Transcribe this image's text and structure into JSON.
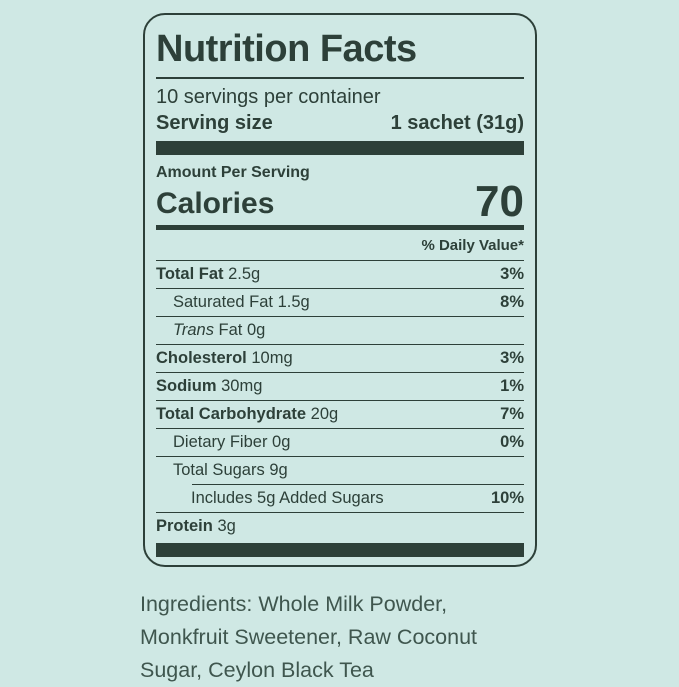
{
  "colors": {
    "background": "#cfe8e4",
    "ink": "#2d4039",
    "ingredients_text": "#3f564e"
  },
  "label": {
    "title": "Nutrition Facts",
    "servings_per_container": "10 servings per container",
    "serving_size": {
      "label": "Serving size",
      "value": "1 sachet (31g)"
    },
    "amount_per_serving": "Amount Per Serving",
    "calories": {
      "label": "Calories",
      "value": "70"
    },
    "daily_value_header": "% Daily Value*",
    "rows": [
      {
        "name": "Total Fat",
        "amount": "2.5g",
        "daily_value": "3%"
      },
      {
        "name": "Saturated Fat",
        "amount": "1.5g",
        "daily_value": "8%"
      },
      {
        "name_italic": "Trans",
        "name": "Fat",
        "amount": "0g",
        "daily_value": ""
      },
      {
        "name": "Cholesterol",
        "amount": "10mg",
        "daily_value": "3%"
      },
      {
        "name": "Sodium",
        "amount": "30mg",
        "daily_value": "1%"
      },
      {
        "name": "Total Carbohydrate",
        "amount": "20g",
        "daily_value": "7%"
      },
      {
        "name": "Dietary Fiber",
        "amount": "0g",
        "daily_value": "0%"
      },
      {
        "name": "Total Sugars",
        "amount": "9g",
        "daily_value": ""
      },
      {
        "name": "Includes 5g Added Sugars",
        "amount": "",
        "daily_value": "10%"
      },
      {
        "name": "Protein",
        "amount": "3g",
        "daily_value": ""
      }
    ]
  },
  "ingredients": "Ingredients: Whole Milk Powder, Monkfruit Sweetener, Raw Coconut Sugar, Ceylon Black Tea"
}
